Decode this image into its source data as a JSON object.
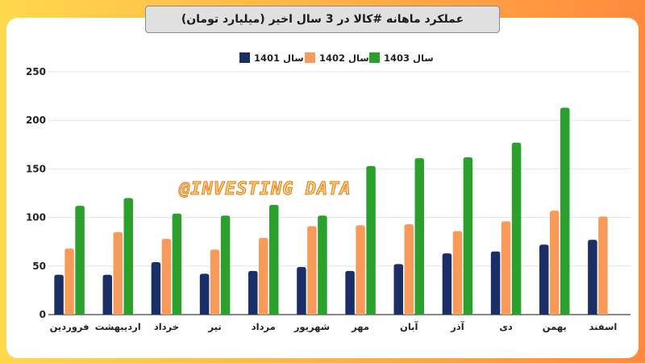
{
  "header": {
    "title": "عملکرد ماهانه #کالا در 3 سال اخیر (میلیارد تومان)"
  },
  "watermark": "@INVESTING DATA",
  "chart_data": {
    "type": "bar",
    "categories": [
      "فروردین",
      "اردیبهشت",
      "خرداد",
      "تیر",
      "مرداد",
      "شهریور",
      "مهر",
      "آبان",
      "آذر",
      "دی",
      "بهمن",
      "اسفند"
    ],
    "series": [
      {
        "name": "سال 1401",
        "color": "#1b2f66",
        "values": [
          41,
          41,
          54,
          42,
          45,
          49,
          45,
          52,
          63,
          65,
          72,
          77
        ]
      },
      {
        "name": "سال 1402",
        "color": "#f79a5a",
        "values": [
          68,
          85,
          78,
          67,
          79,
          91,
          92,
          93,
          86,
          96,
          107,
          101
        ]
      },
      {
        "name": "سال 1403",
        "color": "#2ca02c",
        "values": [
          112,
          120,
          104,
          102,
          113,
          102,
          153,
          161,
          162,
          177,
          213,
          null
        ]
      }
    ],
    "yticks": [
      0,
      50,
      100,
      150,
      200,
      250
    ],
    "ylim": [
      0,
      250
    ],
    "grid": true,
    "legend_position": "top-center"
  }
}
